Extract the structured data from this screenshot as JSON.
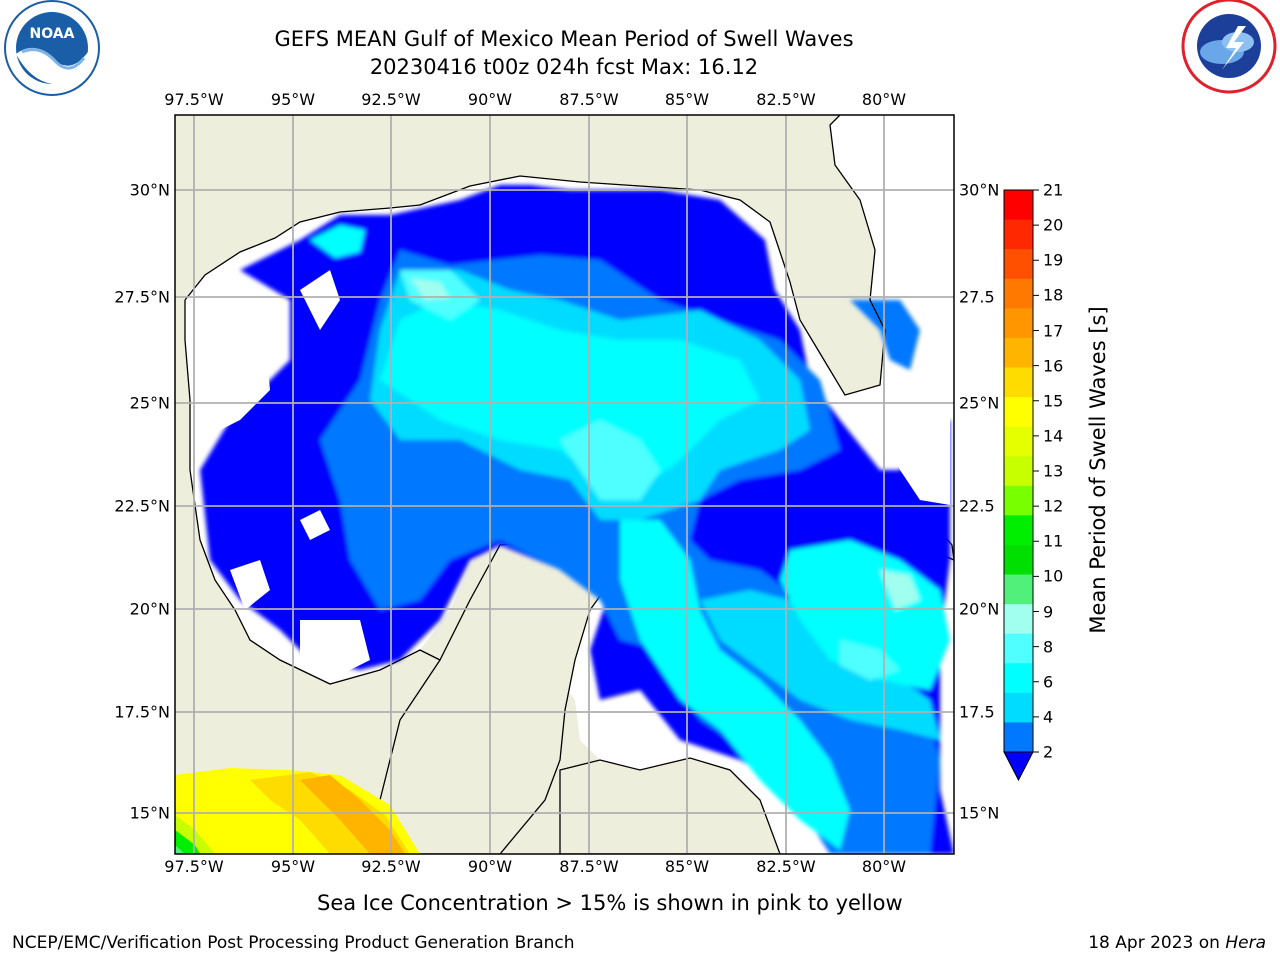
{
  "header": {
    "title": "GEFS MEAN Gulf of Mexico Mean Period of Swell Waves",
    "subtitle": "20230416 t00z 024h fcst   Max: 16.12"
  },
  "logos": {
    "left": {
      "name": "noaa-logo",
      "text": "NOAA",
      "color": "#1b5ea8"
    },
    "right": {
      "name": "national-weather-service-logo",
      "text": "NATIONAL WEATHER SERVICE",
      "color": "#e0202a"
    }
  },
  "map": {
    "lon_ticks": [
      "97.5°W",
      "95°W",
      "92.5°W",
      "90°W",
      "87.5°W",
      "85°W",
      "82.5°W",
      "80°W"
    ],
    "lat_ticks_left": [
      "30°N",
      "27.5°N",
      "25°N",
      "22.5°N",
      "20°N",
      "17.5°N",
      "15°N"
    ],
    "lat_ticks_right": [
      "30°N",
      "27.5",
      "25°N",
      "22.5",
      "20°N",
      "17.5",
      "15°N"
    ],
    "colors": {
      "land": "#eeeedd",
      "no_data": "#ffffff",
      "grid": "#b0b0b0"
    }
  },
  "colorbar": {
    "label": "Mean Period of Swell Waves [s]",
    "ticks": [
      "21",
      "20",
      "19",
      "18",
      "17",
      "16",
      "15",
      "14",
      "13",
      "12",
      "11",
      "10",
      "9",
      "8",
      "6",
      "4",
      "2"
    ],
    "colors": [
      "#ff0000",
      "#ff2800",
      "#ff5000",
      "#ff7800",
      "#ff9600",
      "#ffb400",
      "#ffdc00",
      "#ffff00",
      "#e6ff00",
      "#c8ff00",
      "#78ff00",
      "#00ee00",
      "#00e000",
      "#50f07a",
      "#a0ffee",
      "#50ffff",
      "#00ffff",
      "#00dcff",
      "#0078ff"
    ],
    "extend_color": "#0000ff"
  },
  "note": "Sea Ice Concentration > 15% is shown in pink to yellow",
  "footer": {
    "left": "NCEP/EMC/Verification Post Processing Product Generation Branch",
    "right_prefix": "18 Apr 2023 on ",
    "right_host": "Hera"
  }
}
